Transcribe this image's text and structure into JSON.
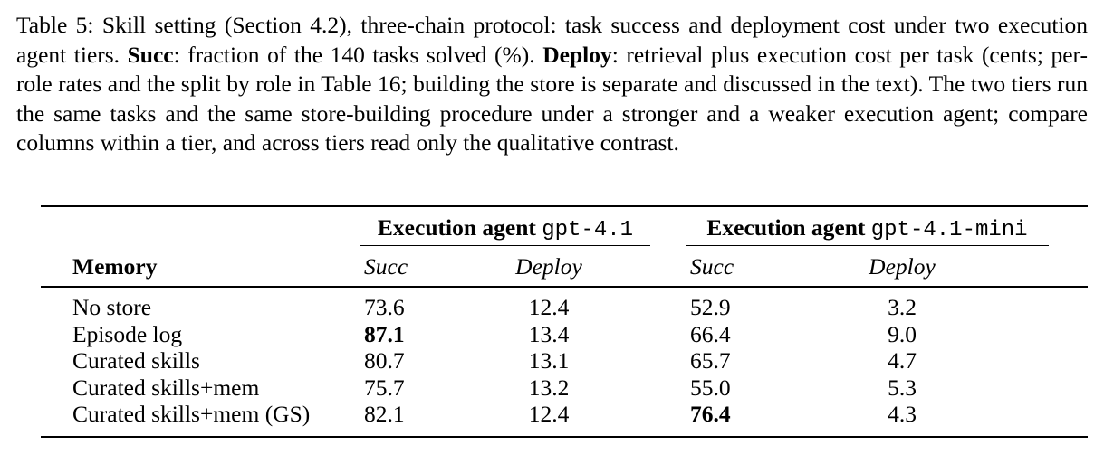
{
  "caption": {
    "segments": [
      {
        "text": "Table 5: Skill setting (Section 4.2), three-chain protocol: task success and deployment cost under two execution agent tiers. "
      },
      {
        "text": "Succ",
        "bold": true
      },
      {
        "text": ": fraction of the 140 tasks solved (%). "
      },
      {
        "text": "Deploy",
        "bold": true
      },
      {
        "text": ": retrieval plus execution cost per task (cents; per-role rates and the split by role in Table 16; building the store is separate and discussed in the text). The two tiers run the same tasks and the same store-building procedure under a stronger and a weaker execution agent; compare columns within a tier, and across tiers read only the qualitative contrast."
      }
    ]
  },
  "table": {
    "groups": [
      {
        "label": "Execution agent",
        "model": "gpt-4.1"
      },
      {
        "label": "Execution agent",
        "model": "gpt-4.1-mini"
      }
    ],
    "columns": [
      "Memory",
      "Succ",
      "Deploy",
      "Succ",
      "Deploy"
    ],
    "rows": [
      {
        "cells": [
          "No store",
          "73.6",
          "12.4",
          "52.9",
          "3.2"
        ],
        "bold": []
      },
      {
        "cells": [
          "Episode log",
          "87.1",
          "13.4",
          "66.4",
          "9.0"
        ],
        "bold": [
          1
        ]
      },
      {
        "cells": [
          "Curated skills",
          "80.7",
          "13.1",
          "65.7",
          "4.7"
        ],
        "bold": []
      },
      {
        "cells": [
          "Curated skills+mem",
          "75.7",
          "13.2",
          "55.0",
          "5.3"
        ],
        "bold": []
      },
      {
        "cells": [
          "Curated skills+mem (GS)",
          "82.1",
          "12.4",
          "76.4",
          "4.3"
        ],
        "bold": [
          3
        ]
      }
    ]
  }
}
